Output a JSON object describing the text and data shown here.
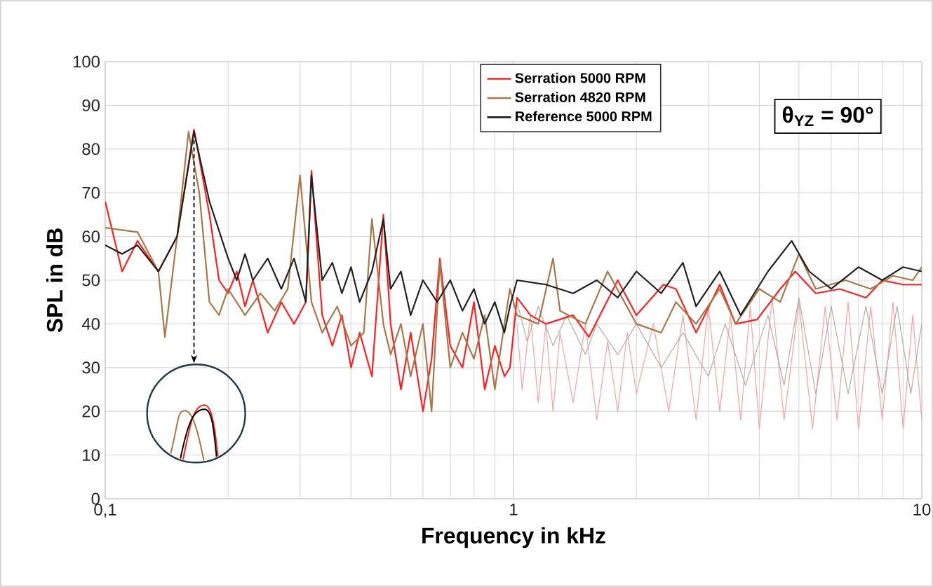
{
  "chart_data": {
    "type": "line",
    "xlabel": "Frequency in kHz",
    "ylabel": "SPL in dB",
    "log": "x",
    "xlim": [
      0.1,
      10
    ],
    "ylim": [
      0,
      100
    ],
    "xticks": [
      {
        "value": 0.1,
        "label": "0,1"
      },
      1,
      10
    ],
    "yticks": [
      0,
      10,
      20,
      30,
      40,
      50,
      60,
      70,
      80,
      90,
      100
    ],
    "grid": true,
    "legend": "top",
    "annotations": [
      "θ$_{YZ}$ = 90°"
    ],
    "series": [
      {
        "color": "#f4a3a3",
        "x": [
          1.02,
          1.05,
          1.1,
          1.15,
          1.2,
          1.25,
          1.3,
          1.4,
          1.5,
          1.6,
          1.7,
          1.8,
          1.9,
          2.0,
          2.2,
          2.4,
          2.6,
          2.8,
          3.0,
          3.2,
          3.4,
          3.6,
          3.8,
          4.0,
          4.3,
          4.6,
          5.0,
          5.4,
          5.8,
          6.2,
          6.6,
          7.0,
          7.5,
          8.0,
          8.5,
          9.0,
          9.5,
          10
        ],
        "values": [
          40,
          25,
          42,
          22,
          40,
          20,
          38,
          22,
          40,
          18,
          36,
          20,
          38,
          24,
          40,
          20,
          42,
          18,
          44,
          20,
          42,
          18,
          44,
          16,
          46,
          18,
          45,
          16,
          44,
          18,
          45,
          16,
          44,
          18,
          45,
          16,
          42,
          18
        ]
      },
      {
        "color": "#b4aaa4",
        "x": [
          1.02,
          1.08,
          1.15,
          1.25,
          1.35,
          1.5,
          1.6,
          1.8,
          2.0,
          2.3,
          2.6,
          3.0,
          3.3,
          3.7,
          4.2,
          4.6,
          5.0,
          5.5,
          6.0,
          6.6,
          7.3,
          8.0,
          8.7,
          9.4,
          10
        ],
        "values": [
          45,
          36,
          44,
          35,
          42,
          33,
          40,
          33,
          40,
          30,
          38,
          28,
          40,
          26,
          42,
          26,
          46,
          24,
          44,
          24,
          44,
          24,
          44,
          24,
          40
        ]
      },
      {
        "name": "Serration 5000 RPM",
        "color": "#ff2020",
        "x": [
          0.1,
          0.11,
          0.12,
          0.135,
          0.15,
          0.165,
          0.18,
          0.19,
          0.2,
          0.21,
          0.22,
          0.23,
          0.25,
          0.27,
          0.29,
          0.31,
          0.32,
          0.34,
          0.36,
          0.38,
          0.4,
          0.42,
          0.45,
          0.48,
          0.5,
          0.53,
          0.56,
          0.6,
          0.63,
          0.66,
          0.7,
          0.75,
          0.8,
          0.85,
          0.9,
          0.95,
          0.98,
          1.02,
          1.1,
          1.2,
          1.4,
          1.53,
          1.8,
          2.0,
          2.33,
          2.5,
          2.8,
          3.2,
          3.5,
          3.95,
          4.5,
          4.9,
          5.5,
          6.3,
          7.3,
          8.0,
          9.0,
          10
        ],
        "values": [
          68,
          52,
          59,
          52,
          60,
          84.5,
          65,
          50,
          47,
          52,
          44,
          50,
          38,
          45,
          40,
          45,
          75,
          42,
          35,
          42,
          30,
          38,
          28,
          65,
          40,
          25,
          38,
          20,
          32,
          55,
          35,
          30,
          45,
          25,
          35,
          28,
          30,
          46,
          42,
          40,
          42,
          37,
          50,
          42,
          49,
          48,
          38,
          49,
          40,
          41,
          48,
          52,
          47,
          48,
          46,
          50,
          49,
          49
        ]
      },
      {
        "name": "Serration 4820 RPM",
        "color": "#a87848",
        "x": [
          0.1,
          0.12,
          0.135,
          0.14,
          0.15,
          0.16,
          0.17,
          0.18,
          0.19,
          0.2,
          0.22,
          0.24,
          0.26,
          0.28,
          0.3,
          0.32,
          0.34,
          0.37,
          0.4,
          0.43,
          0.45,
          0.48,
          0.5,
          0.53,
          0.56,
          0.6,
          0.63,
          0.66,
          0.7,
          0.75,
          0.8,
          0.85,
          0.9,
          0.95,
          0.98,
          1.02,
          1.15,
          1.25,
          1.3,
          1.5,
          1.7,
          2.0,
          2.3,
          2.5,
          2.8,
          3.2,
          3.5,
          4.0,
          4.5,
          5.0,
          5.5,
          6.5,
          7.5,
          8.5,
          9.5,
          10
        ],
        "values": [
          62,
          61,
          52,
          37,
          60,
          84,
          70,
          45,
          42,
          48,
          42,
          47,
          43,
          48,
          74,
          45,
          38,
          44,
          35,
          38,
          64,
          40,
          33,
          40,
          28,
          40,
          20,
          54,
          30,
          38,
          32,
          42,
          25,
          40,
          48,
          42,
          40,
          55,
          43,
          40,
          52,
          40,
          38,
          45,
          40,
          48,
          40,
          48,
          45,
          56,
          48,
          50,
          48,
          51,
          50,
          53
        ]
      },
      {
        "name": "Reference 5000 RPM",
        "color": "#202020",
        "x": [
          0.1,
          0.11,
          0.12,
          0.135,
          0.15,
          0.165,
          0.18,
          0.2,
          0.21,
          0.22,
          0.23,
          0.25,
          0.27,
          0.29,
          0.31,
          0.32,
          0.34,
          0.36,
          0.38,
          0.4,
          0.42,
          0.45,
          0.48,
          0.5,
          0.53,
          0.56,
          0.6,
          0.65,
          0.7,
          0.75,
          0.8,
          0.85,
          0.9,
          0.95,
          0.98,
          1.02,
          1.2,
          1.4,
          1.6,
          1.8,
          2.0,
          2.3,
          2.6,
          2.8,
          3.2,
          3.6,
          4.2,
          4.8,
          5.3,
          6.0,
          7.0,
          8.0,
          9.0,
          10
        ],
        "values": [
          58,
          56,
          58,
          52,
          60,
          84,
          68,
          55,
          50,
          56,
          50,
          55,
          48,
          55,
          45,
          74,
          50,
          54,
          47,
          53,
          45,
          52,
          64,
          48,
          52,
          42,
          50,
          45,
          50,
          43,
          48,
          40,
          45,
          38,
          44,
          50,
          49,
          47,
          50,
          46,
          52,
          47,
          54,
          44,
          52,
          42,
          52,
          59,
          52,
          48,
          53,
          50,
          53,
          52
        ]
      }
    ]
  }
}
